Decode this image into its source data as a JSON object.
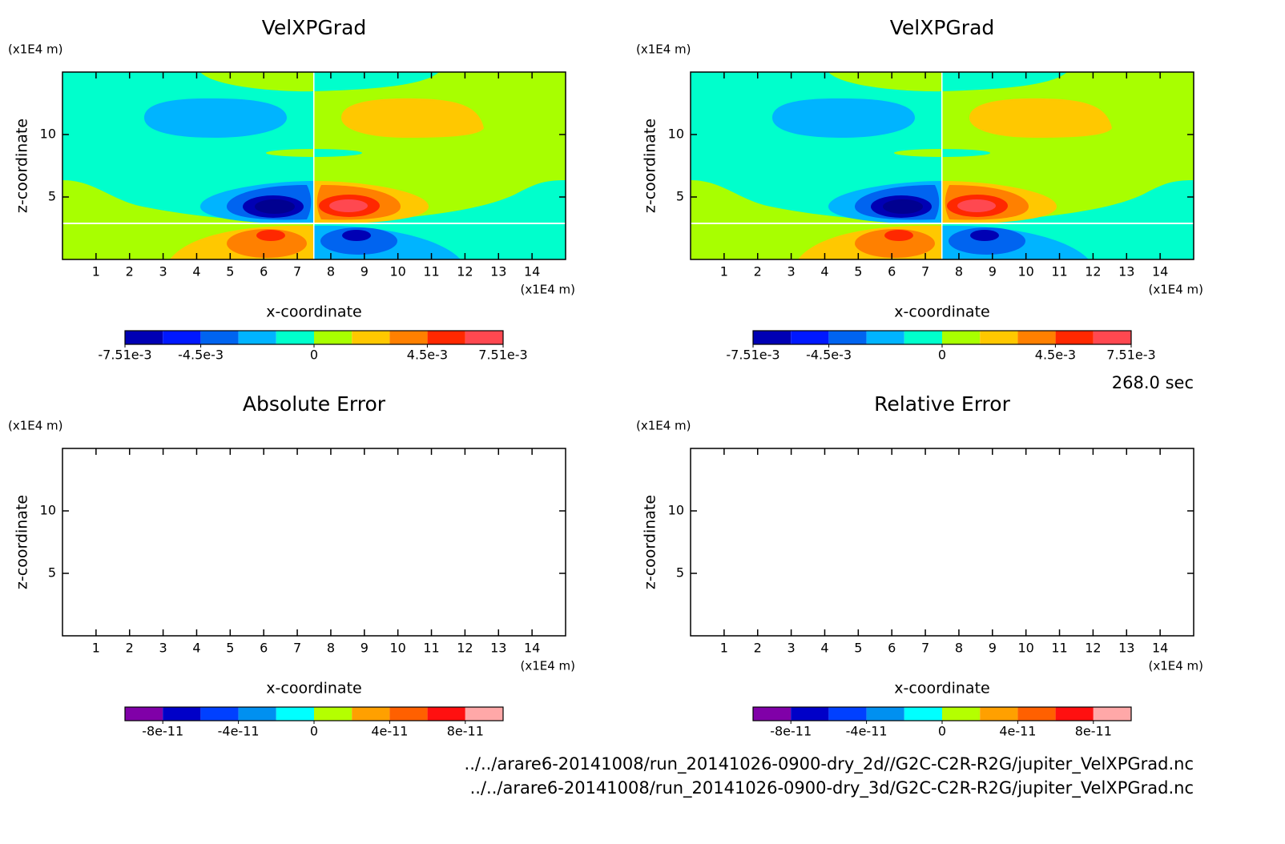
{
  "chart_data": [
    {
      "type": "contour",
      "title": "VelXPGrad",
      "x_label": "x-coordinate",
      "y_label": "z-coordinate",
      "x_unit": "(x1E4 m)",
      "y_unit": "(x1E4 m)",
      "xlim": [
        0,
        15
      ],
      "xticks": [
        1,
        2,
        3,
        4,
        5,
        6,
        7,
        8,
        9,
        10,
        11,
        12,
        13,
        14
      ],
      "ylim": [
        0,
        15
      ],
      "yticks": [
        5,
        10
      ],
      "colorbar": {
        "lim": [
          -0.00751,
          0.00751
        ],
        "ticks": [
          {
            "value": -0.00751,
            "label": "-7.51e-3"
          },
          {
            "value": -0.0045,
            "label": "-4.5e-3"
          },
          0,
          {
            "value": 0.0045,
            "label": "4.5e-3"
          },
          {
            "value": 0.00751,
            "label": "7.51e-3"
          }
        ],
        "colors": [
          "#0000b4",
          "#0018ff",
          "#0064f0",
          "#00b4ff",
          "#00ffcc",
          "#a8ff00",
          "#ffc800",
          "#ff8000",
          "#ff2800",
          "#ff4850"
        ]
      }
    },
    {
      "type": "contour",
      "title": "VelXPGrad",
      "x_label": "x-coordinate",
      "y_label": "z-coordinate",
      "x_unit": "(x1E4 m)",
      "y_unit": "(x1E4 m)",
      "xlim": [
        0,
        15
      ],
      "xticks": [
        1,
        2,
        3,
        4,
        5,
        6,
        7,
        8,
        9,
        10,
        11,
        12,
        13,
        14
      ],
      "ylim": [
        0,
        15
      ],
      "yticks": [
        5,
        10
      ],
      "colorbar": {
        "lim": [
          -0.00751,
          0.00751
        ],
        "ticks": [
          {
            "value": -0.00751,
            "label": "-7.51e-3"
          },
          {
            "value": -0.0045,
            "label": "-4.5e-3"
          },
          0,
          {
            "value": 0.0045,
            "label": "4.5e-3"
          },
          {
            "value": 0.00751,
            "label": "7.51e-3"
          }
        ],
        "colors": [
          "#0000b4",
          "#0018ff",
          "#0064f0",
          "#00b4ff",
          "#00ffcc",
          "#a8ff00",
          "#ffc800",
          "#ff8000",
          "#ff2800",
          "#ff4850"
        ]
      }
    },
    {
      "type": "contour",
      "title": "Absolute Error",
      "x_label": "x-coordinate",
      "y_label": "z-coordinate",
      "x_unit": "(x1E4 m)",
      "y_unit": "(x1E4 m)",
      "xlim": [
        0,
        15
      ],
      "xticks": [
        1,
        2,
        3,
        4,
        5,
        6,
        7,
        8,
        9,
        10,
        11,
        12,
        13,
        14
      ],
      "ylim": [
        0,
        15
      ],
      "yticks": [
        5,
        10
      ],
      "colorbar": {
        "lim": [
          -1e-10,
          1e-10
        ],
        "ticks": [
          {
            "value": -8e-11,
            "label": "-8e-11"
          },
          {
            "value": -4e-11,
            "label": "-4e-11"
          },
          0,
          {
            "value": 4e-11,
            "label": "4e-11"
          },
          {
            "value": 8e-11,
            "label": "8e-11"
          }
        ],
        "colors": [
          "#8000a8",
          "#0000c8",
          "#0040ff",
          "#0090f0",
          "#00ffff",
          "#b4ff00",
          "#ffa000",
          "#ff6000",
          "#ff1010",
          "#ffa8a8"
        ]
      }
    },
    {
      "type": "contour",
      "title": "Relative Error",
      "x_label": "x-coordinate",
      "y_label": "z-coordinate",
      "x_unit": "(x1E4 m)",
      "y_unit": "(x1E4 m)",
      "xlim": [
        0,
        15
      ],
      "xticks": [
        1,
        2,
        3,
        4,
        5,
        6,
        7,
        8,
        9,
        10,
        11,
        12,
        13,
        14
      ],
      "ylim": [
        0,
        15
      ],
      "yticks": [
        5,
        10
      ],
      "colorbar": {
        "lim": [
          -1e-10,
          1e-10
        ],
        "ticks": [
          {
            "value": -8e-11,
            "label": "-8e-11"
          },
          {
            "value": -4e-11,
            "label": "-4e-11"
          },
          0,
          {
            "value": 4e-11,
            "label": "4e-11"
          },
          {
            "value": 8e-11,
            "label": "8e-11"
          }
        ],
        "colors": [
          "#8000a8",
          "#0000c8",
          "#0040ff",
          "#0090f0",
          "#00ffff",
          "#b4ff00",
          "#ffa000",
          "#ff6000",
          "#ff1010",
          "#ffa8a8"
        ]
      }
    }
  ],
  "time_label": "268.0 sec",
  "files": [
    "../../arare6-20141008/run_20141026-0900-dry_2d//G2C-C2R-R2G/jupiter_VelXPGrad.nc",
    "../../arare6-20141008/run_20141026-0900-dry_3d/G2C-C2R-R2G/jupiter_VelXPGrad.nc"
  ]
}
